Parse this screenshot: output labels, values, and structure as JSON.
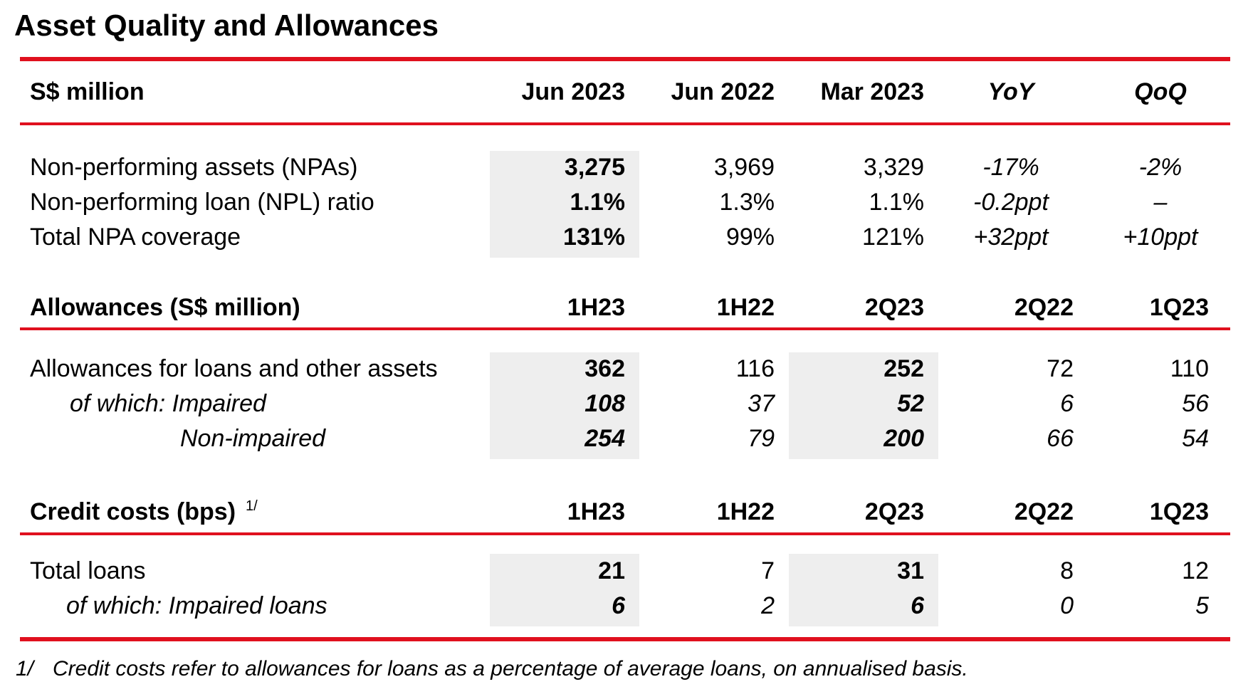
{
  "title": "Asset Quality and Allowances",
  "header": {
    "label": "S$ million",
    "cols": [
      "Jun 2023",
      "Jun 2022",
      "Mar 2023",
      "YoY",
      "QoQ"
    ]
  },
  "npa_section": {
    "rows": [
      {
        "label": "Non-performing assets (NPAs)",
        "values": [
          "3,275",
          "3,969",
          "3,329",
          "-17%",
          "-2%"
        ]
      },
      {
        "label": "Non-performing loan (NPL) ratio",
        "values": [
          "1.1%",
          "1.3%",
          "1.1%",
          "-0.2ppt",
          "–"
        ]
      },
      {
        "label": "Total NPA coverage",
        "values": [
          "131%",
          "99%",
          "121%",
          "+32ppt",
          "+10ppt"
        ]
      }
    ]
  },
  "allowances_section": {
    "header": {
      "label": "Allowances (S$ million)",
      "cols": [
        "1H23",
        "1H22",
        "2Q23",
        "2Q22",
        "1Q23"
      ]
    },
    "rows": [
      {
        "label": "Allowances for loans and other assets",
        "values": [
          "362",
          "116",
          "252",
          "72",
          "110"
        ]
      },
      {
        "label": "of which: Impaired",
        "values": [
          "108",
          "37",
          "52",
          "6",
          "56"
        ]
      },
      {
        "label": "Non-impaired",
        "values": [
          "254",
          "79",
          "200",
          "66",
          "54"
        ]
      }
    ]
  },
  "credit_section": {
    "header": {
      "label": "Credit costs (bps)",
      "footnote_ref": "1/",
      "cols": [
        "1H23",
        "1H22",
        "2Q23",
        "2Q22",
        "1Q23"
      ]
    },
    "rows": [
      {
        "label": "Total loans",
        "values": [
          "21",
          "7",
          "31",
          "8",
          "12"
        ]
      },
      {
        "label": "of which: Impaired loans",
        "values": [
          "6",
          "2",
          "6",
          "0",
          "5"
        ]
      }
    ]
  },
  "footnote": {
    "marker": "1/",
    "text": "Credit costs refer to allowances for loans as a percentage of average loans, on annualised basis."
  },
  "colors": {
    "accent_rule": "#e0101e",
    "highlight_fill": "#eeeeee"
  }
}
